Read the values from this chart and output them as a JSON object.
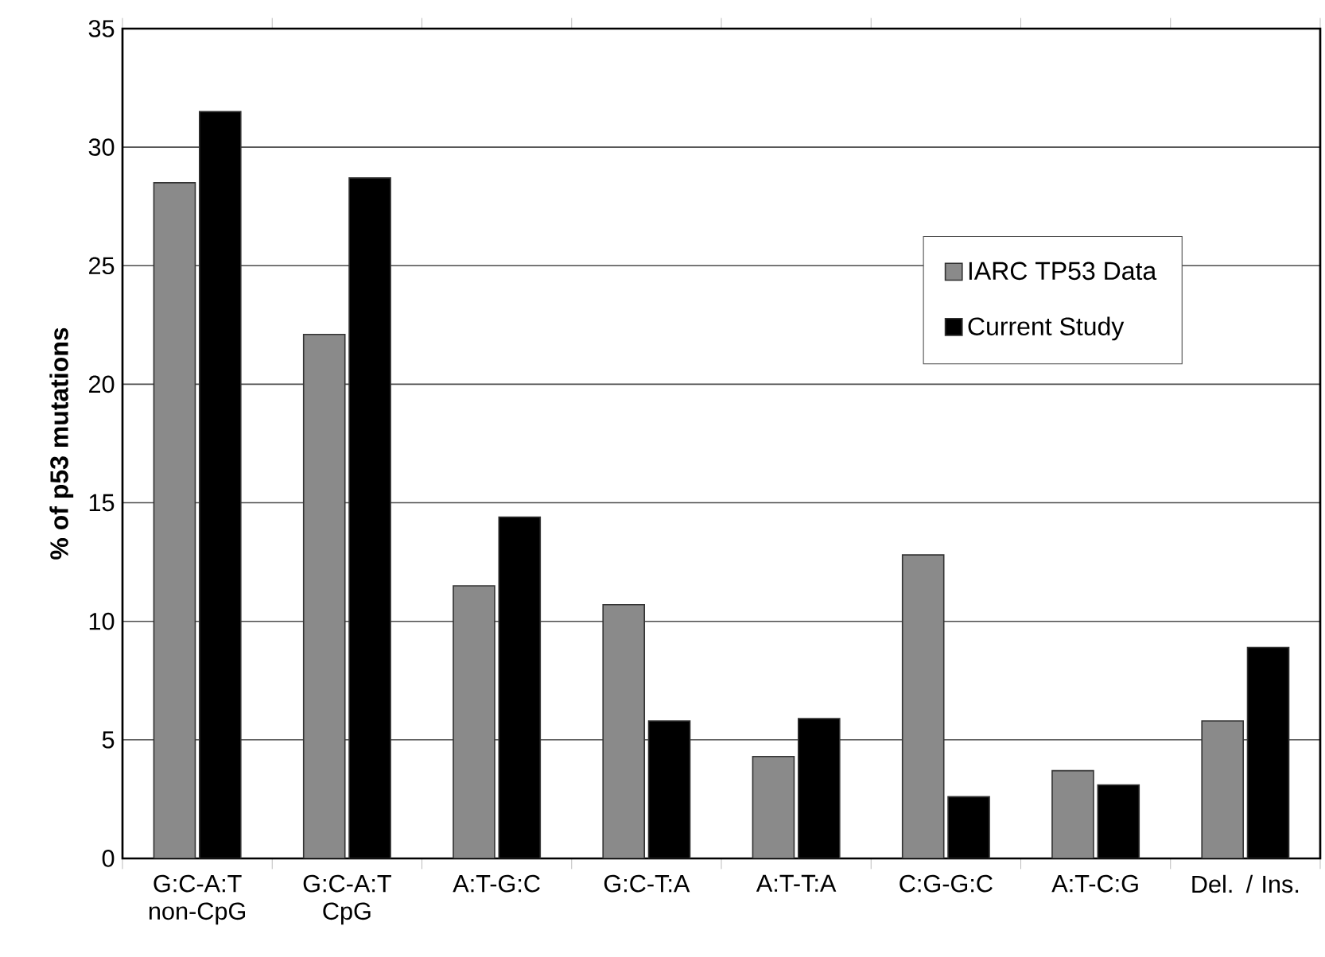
{
  "chart_data": {
    "type": "bar",
    "ylabel": "% of p53 mutations",
    "categories": [
      "G:C-A:T non-CpG",
      "G:C-A:T CpG",
      "A:T-G:C",
      "G:C-T:A",
      "A:T-T:A",
      "C:G-G:C",
      "A:T-C:G",
      "Del. / Ins."
    ],
    "series": [
      {
        "name": "IARC TP53 Data",
        "color": "#8a8a8a",
        "values": [
          28.5,
          22.1,
          11.5,
          10.7,
          4.3,
          12.8,
          3.7,
          5.8
        ]
      },
      {
        "name": "Current Study",
        "color": "#000000",
        "values": [
          31.5,
          28.7,
          14.4,
          5.8,
          5.9,
          2.6,
          3.1,
          8.9
        ]
      }
    ],
    "ylim": [
      0,
      35
    ],
    "yticks": [
      0,
      5,
      10,
      15,
      20,
      25,
      30,
      35
    ],
    "grid": "y",
    "legend": "top right"
  }
}
